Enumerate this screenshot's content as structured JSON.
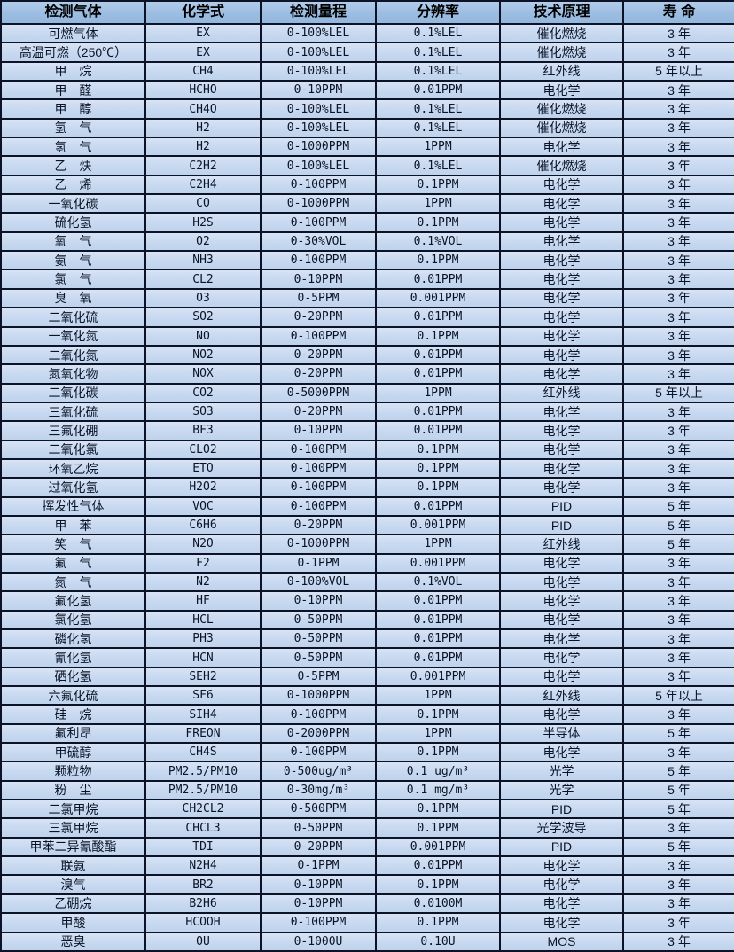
{
  "table": {
    "headers": [
      "检测气体",
      "化学式",
      "检测量程",
      "分辨率",
      "技术原理",
      "寿 命"
    ],
    "column_names": [
      "gas-name",
      "chemical-formula",
      "detection-range",
      "resolution",
      "technology-principle",
      "lifespan"
    ],
    "rows": [
      [
        "可燃气体",
        "EX",
        "0-100%LEL",
        "0.1%LEL",
        "催化燃烧",
        "3 年"
      ],
      [
        "高温可燃（250℃）",
        "EX",
        "0-100%LEL",
        "0.1%LEL",
        "催化燃烧",
        "3 年"
      ],
      [
        "甲　烷",
        "CH4",
        "0-100%LEL",
        "0.1%LEL",
        "红外线",
        "5 年以上"
      ],
      [
        "甲　醛",
        "HCHO",
        "0-10PPM",
        "0.01PPM",
        "电化学",
        "3 年"
      ],
      [
        "甲　醇",
        "CH4O",
        "0-100%LEL",
        "0.1%LEL",
        "催化燃烧",
        "3 年"
      ],
      [
        "氢　气",
        "H2",
        "0-100%LEL",
        "0.1%LEL",
        "催化燃烧",
        "3 年"
      ],
      [
        "氢　气",
        "H2",
        "0-1000PPM",
        "1PPM",
        "电化学",
        "3 年"
      ],
      [
        "乙　炔",
        "C2H2",
        "0-100%LEL",
        "0.1%LEL",
        "催化燃烧",
        "3 年"
      ],
      [
        "乙　烯",
        "C2H4",
        "0-100PPM",
        "0.1PPM",
        "电化学",
        "3 年"
      ],
      [
        "一氧化碳",
        "CO",
        "0-1000PPM",
        "1PPM",
        "电化学",
        "3 年"
      ],
      [
        "硫化氢",
        "H2S",
        "0-100PPM",
        "0.1PPM",
        "电化学",
        "3 年"
      ],
      [
        "氧　气",
        "O2",
        "0-30%VOL",
        "0.1%VOL",
        "电化学",
        "3 年"
      ],
      [
        "氨　气",
        "NH3",
        "0-100PPM",
        "0.1PPM",
        "电化学",
        "3 年"
      ],
      [
        "氯　气",
        "CL2",
        "0-10PPM",
        "0.01PPM",
        "电化学",
        "3 年"
      ],
      [
        "臭　氧",
        "O3",
        "0-5PPM",
        "0.001PPM",
        "电化学",
        "3 年"
      ],
      [
        "二氧化硫",
        "SO2",
        "0-20PPM",
        "0.01PPM",
        "电化学",
        "3 年"
      ],
      [
        "一氧化氮",
        "NO",
        "0-100PPM",
        "0.1PPM",
        "电化学",
        "3 年"
      ],
      [
        "二氧化氮",
        "NO2",
        "0-20PPM",
        "0.01PPM",
        "电化学",
        "3 年"
      ],
      [
        "氮氧化物",
        "NOX",
        "0-20PPM",
        "0.01PPM",
        "电化学",
        "3 年"
      ],
      [
        "二氧化碳",
        "CO2",
        "0-5000PPM",
        "1PPM",
        "红外线",
        "5 年以上"
      ],
      [
        "三氧化硫",
        "SO3",
        "0-20PPM",
        "0.01PPM",
        "电化学",
        "3 年"
      ],
      [
        "三氟化硼",
        "BF3",
        "0-10PPM",
        "0.01PPM",
        "电化学",
        "3 年"
      ],
      [
        "二氧化氯",
        "CLO2",
        "0-100PPM",
        "0.1PPM",
        "电化学",
        "3 年"
      ],
      [
        "环氧乙烷",
        "ETO",
        "0-100PPM",
        "0.1PPM",
        "电化学",
        "3 年"
      ],
      [
        "过氧化氢",
        "H2O2",
        "0-100PPM",
        "0.1PPM",
        "电化学",
        "3 年"
      ],
      [
        "挥发性气体",
        "VOC",
        "0-100PPM",
        "0.01PPM",
        "PID",
        "5 年"
      ],
      [
        "甲　苯",
        "C6H6",
        "0-20PPM",
        "0.001PPM",
        "PID",
        "5 年"
      ],
      [
        "笑　气",
        "N2O",
        "0-1000PPM",
        "1PPM",
        "红外线",
        "5 年"
      ],
      [
        "氟　气",
        "F2",
        "0-1PPM",
        "0.001PPM",
        "电化学",
        "3 年"
      ],
      [
        "氮　气",
        "N2",
        "0-100%VOL",
        "0.1%VOL",
        "电化学",
        "3 年"
      ],
      [
        "氟化氢",
        "HF",
        "0-10PPM",
        "0.01PPM",
        "电化学",
        "3 年"
      ],
      [
        "氯化氢",
        "HCL",
        "0-50PPM",
        "0.01PPM",
        "电化学",
        "3 年"
      ],
      [
        "磷化氢",
        "PH3",
        "0-50PPM",
        "0.01PPM",
        "电化学",
        "3 年"
      ],
      [
        "氰化氢",
        "HCN",
        "0-50PPM",
        "0.01PPM",
        "电化学",
        "3 年"
      ],
      [
        "硒化氢",
        "SEH2",
        "0-5PPM",
        "0.001PPM",
        "电化学",
        "3 年"
      ],
      [
        "六氟化硫",
        "SF6",
        "0-1000PPM",
        "1PPM",
        "红外线",
        "5 年以上"
      ],
      [
        "硅　烷",
        "SIH4",
        "0-100PPM",
        "0.1PPM",
        "电化学",
        "3 年"
      ],
      [
        "氟利昂",
        "FREON",
        "0-2000PPM",
        "1PPM",
        "半导体",
        "5 年"
      ],
      [
        "甲硫醇",
        "CH4S",
        "0-100PPM",
        "0.1PPM",
        "电化学",
        "3 年"
      ],
      [
        "颗粒物",
        "PM2.5/PM10",
        "0-500ug/m³",
        "0.1 ug/m³",
        "光学",
        "5 年"
      ],
      [
        "粉　尘",
        "PM2.5/PM10",
        "0-30mg/m³",
        "0.1 mg/m³",
        "光学",
        "5 年"
      ],
      [
        "二氯甲烷",
        "CH2CL2",
        "0-500PPM",
        "0.1PPM",
        "PID",
        "5 年"
      ],
      [
        "三氯甲烷",
        "CHCL3",
        "0-50PPM",
        "0.1PPM",
        "光学波导",
        "3 年"
      ],
      [
        "甲苯二异氰酸酯",
        "TDI",
        "0-20PPM",
        "0.001PPM",
        "PID",
        "5 年"
      ],
      [
        "联氨",
        "N2H4",
        "0-1PPM",
        "0.01PPM",
        "电化学",
        "3 年"
      ],
      [
        "溴气",
        "BR2",
        "0-10PPM",
        "0.1PPM",
        "电化学",
        "3 年"
      ],
      [
        "乙硼烷",
        "B2H6",
        "0-10PPM",
        "0.0100M",
        "电化学",
        "3 年"
      ],
      [
        "甲酸",
        "HCOOH",
        "0-100PPM",
        "0.1PPM",
        "电化学",
        "3 年"
      ],
      [
        "恶臭",
        "OU",
        "0-1000U",
        "0.10U",
        "MOS",
        "3 年"
      ]
    ]
  },
  "colors": {
    "header_bg": "#9cbde1",
    "row_bg": "#c9daf1",
    "border": "#0d1326",
    "text": "#0b1426"
  }
}
